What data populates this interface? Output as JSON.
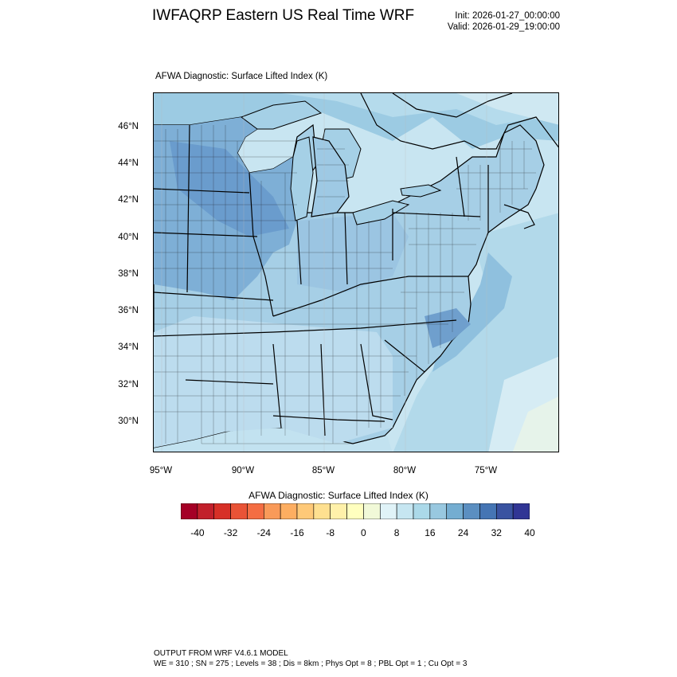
{
  "header": {
    "title": "IWFAQRP Eastern US Real Time WRF",
    "init": "Init: 2026-01-27_00:00:00",
    "valid": "Valid: 2026-01-29_19:00:00"
  },
  "plot": {
    "title": "AFWA Diagnostic: Surface Lifted Index   (K)",
    "lat_labels": [
      "46°N",
      "44°N",
      "42°N",
      "40°N",
      "38°N",
      "36°N",
      "34°N",
      "32°N",
      "30°N"
    ],
    "lon_labels": [
      "95°W",
      "90°W",
      "85°W",
      "80°W",
      "75°W"
    ]
  },
  "colorbar": {
    "title": "AFWA Diagnostic: Surface Lifted Index  (K)",
    "labels": [
      "-40",
      "-32",
      "-24",
      "-16",
      "-8",
      "0",
      "8",
      "16",
      "24",
      "32",
      "40"
    ],
    "colors": [
      "#a50026",
      "#c2202b",
      "#d73027",
      "#e95336",
      "#f46d43",
      "#f99a59",
      "#fdae61",
      "#fec978",
      "#fee090",
      "#fff1aa",
      "#ffffbf",
      "#f1f9d8",
      "#e0f3f8",
      "#c6e6f1",
      "#abd9e9",
      "#98c8e0",
      "#74add1",
      "#5b8fc1",
      "#4575b4",
      "#3a53a1",
      "#313695"
    ],
    "land_colors": {
      "light": "#cfe9f3",
      "mid": "#a9d3e8",
      "dark": "#7fb0d7",
      "darkest": "#5d93c8",
      "water": "#bfe0ef"
    }
  },
  "footer": {
    "line1": "OUTPUT FROM WRF V4.6.1 MODEL",
    "line2": "WE = 310 ; SN = 275 ; Levels = 38 ; Dis = 8km ; Phys Opt = 8 ; PBL Opt = 1 ; Cu Opt = 3"
  }
}
